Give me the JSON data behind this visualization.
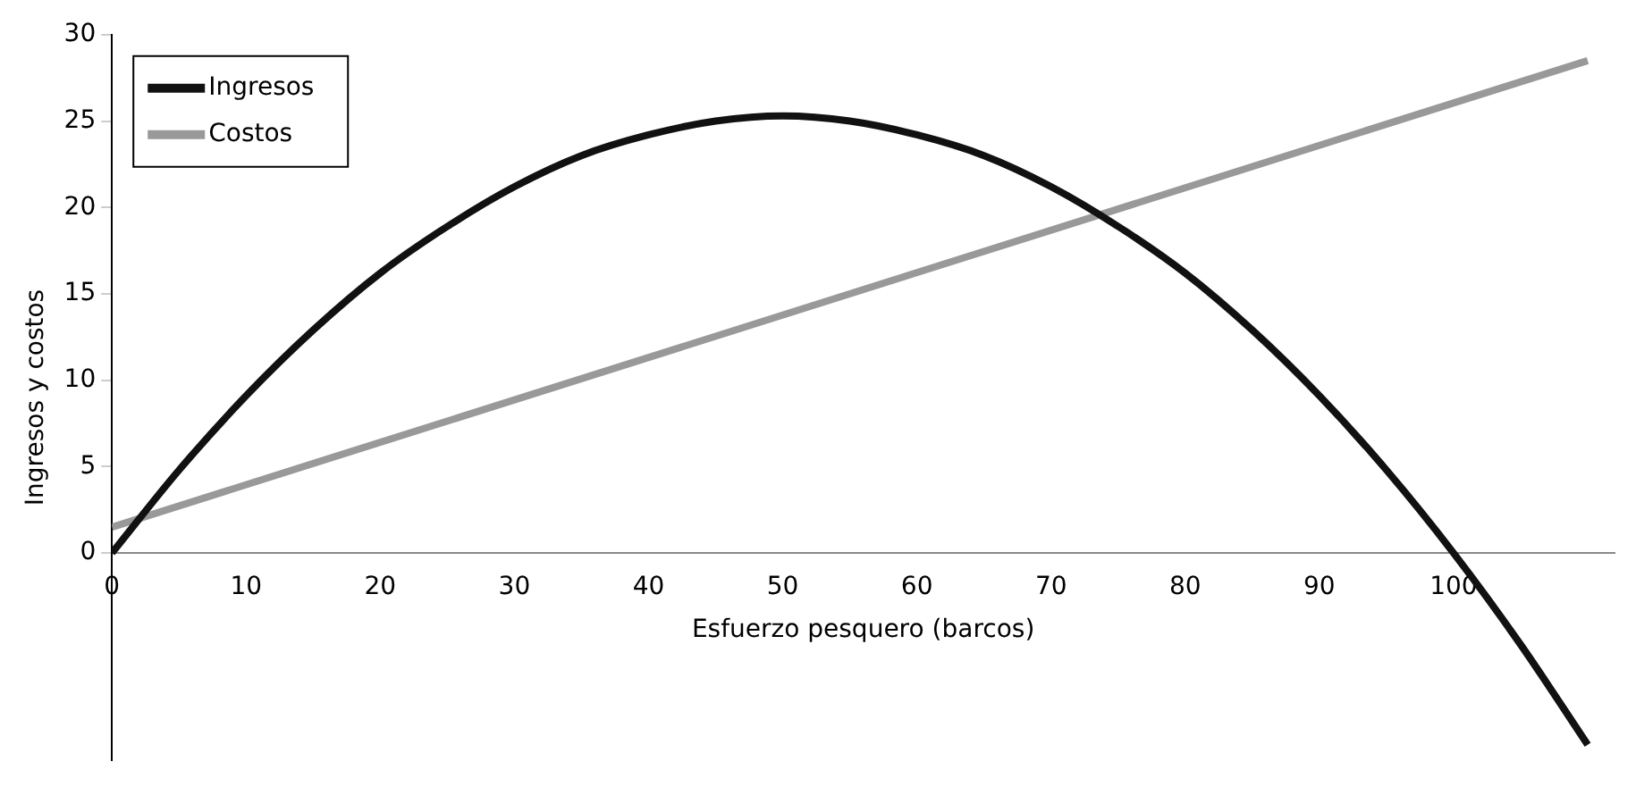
{
  "chart_data": {
    "type": "line",
    "xlabel": "Esfuerzo pesquero (barcos)",
    "ylabel": "Ingresos y costos",
    "xlim": [
      0,
      112
    ],
    "xticks": [
      0,
      10,
      20,
      30,
      40,
      50,
      60,
      70,
      80,
      90,
      100
    ],
    "ylim": [
      -12,
      30
    ],
    "yticks": [
      0,
      5,
      10,
      15,
      20,
      25,
      30
    ],
    "grid": false,
    "legend": "top left",
    "marker": "none",
    "line_style": "solid",
    "series": [
      {
        "name": "Ingresos",
        "color": "#111111",
        "x": [
          0,
          5,
          10,
          15,
          20,
          25,
          30,
          35,
          40,
          45,
          50,
          55,
          60,
          65,
          70,
          75,
          80,
          85,
          90,
          95,
          100,
          105,
          110
        ],
        "values": [
          0,
          4.8,
          9.1,
          12.9,
          16.2,
          18.9,
          21.2,
          23.0,
          24.2,
          25.0,
          25.3,
          25.0,
          24.2,
          23.0,
          21.2,
          18.9,
          16.2,
          12.9,
          9.1,
          4.8,
          0,
          -5.3,
          -11.1
        ]
      },
      {
        "name": "Costos",
        "color": "#999999",
        "x": [
          0,
          110
        ],
        "values": [
          1.5,
          28.5
        ]
      }
    ]
  }
}
